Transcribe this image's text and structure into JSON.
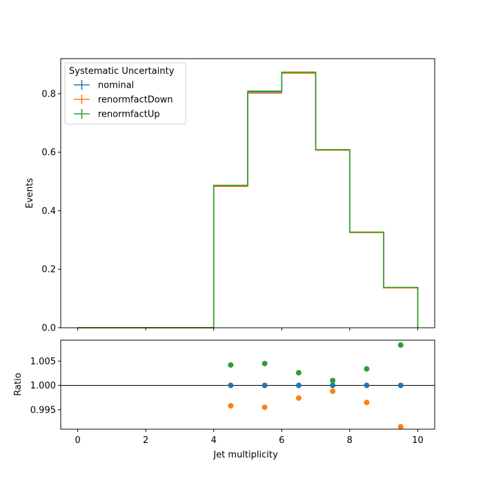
{
  "chart_data": [
    {
      "type": "line",
      "drawstyle": "steps",
      "xlabel": "",
      "ylabel": "Events",
      "xlim": [
        -0.5,
        10.5
      ],
      "ylim": [
        0,
        0.92
      ],
      "xticks": [
        0,
        2,
        4,
        6,
        8,
        10
      ],
      "yticks": [
        0.0,
        0.2,
        0.4,
        0.6,
        0.8
      ],
      "ytick_labels": [
        "0.0",
        "0.2",
        "0.4",
        "0.6",
        "0.8"
      ],
      "bin_edges": [
        0,
        1,
        2,
        3,
        4,
        5,
        6,
        7,
        8,
        9,
        10
      ],
      "legend": {
        "title": "Systematic Uncertainty",
        "position": "top-left"
      },
      "series": [
        {
          "name": "nominal",
          "color": "#1f77b4",
          "values": [
            0,
            0,
            0,
            0,
            0.485,
            0.806,
            0.872,
            0.608,
            0.326,
            0.137
          ]
        },
        {
          "name": "renormfactDown",
          "color": "#ff7f0e",
          "values": [
            0,
            0,
            0,
            0,
            0.483,
            0.802,
            0.87,
            0.607,
            0.325,
            0.136
          ]
        },
        {
          "name": "renormfactUp",
          "color": "#2ca02c",
          "values": [
            0,
            0,
            0,
            0,
            0.487,
            0.809,
            0.874,
            0.609,
            0.327,
            0.138
          ]
        }
      ]
    },
    {
      "type": "scatter",
      "xlabel": "Jet multiplicity",
      "ylabel": "Ratio",
      "xlim": [
        -0.5,
        10.5
      ],
      "ylim": [
        0.991,
        1.0093
      ],
      "xticks": [
        0,
        2,
        4,
        6,
        8,
        10
      ],
      "xtick_labels": [
        "0",
        "2",
        "4",
        "6",
        "8",
        "10"
      ],
      "yticks": [
        0.995,
        1.0,
        1.005
      ],
      "ytick_labels": [
        "0.995",
        "1.000",
        "1.005"
      ],
      "reference_line": 1.0,
      "x": [
        4.5,
        5.5,
        6.5,
        7.5,
        8.5,
        9.5
      ],
      "series": [
        {
          "name": "nominal",
          "color": "#1f77b4",
          "values": [
            1.0,
            1.0,
            1.0,
            1.0,
            1.0,
            1.0
          ]
        },
        {
          "name": "renormfactDown",
          "color": "#ff7f0e",
          "values": [
            0.9958,
            0.9955,
            0.9974,
            0.9988,
            0.9965,
            0.9915
          ]
        },
        {
          "name": "renormfactUp",
          "color": "#2ca02c",
          "values": [
            1.0042,
            1.0045,
            1.0026,
            1.001,
            1.0034,
            1.0083
          ]
        }
      ]
    }
  ]
}
